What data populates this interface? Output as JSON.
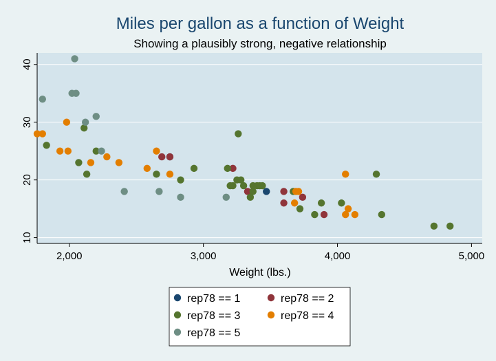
{
  "chart_data": {
    "type": "scatter",
    "title": "Miles per gallon as a function of Weight",
    "subtitle": "Showing a plausibly strong, negative relationship",
    "xlabel": "Weight (lbs.)",
    "ylabel": "",
    "xlim": [
      1760,
      5080
    ],
    "ylim": [
      9,
      42
    ],
    "xticks": [
      2000,
      3000,
      4000,
      5000
    ],
    "xtick_labels": [
      "2,000",
      "3,000",
      "4,000",
      "5,000"
    ],
    "yticks": [
      10,
      20,
      30,
      40
    ],
    "ytick_labels": [
      "10",
      "20",
      "30",
      "40"
    ],
    "grid": "horizontal",
    "legend_position": "bottom",
    "series": [
      {
        "name": "rep78 == 1",
        "color": "#1a476f",
        "points": [
          [
            2750,
            24
          ],
          [
            3470,
            18
          ]
        ]
      },
      {
        "name": "rep78 == 2",
        "color": "#90353b",
        "points": [
          [
            2690,
            24
          ],
          [
            2750,
            24
          ],
          [
            3220,
            22
          ],
          [
            3330,
            18
          ],
          [
            3600,
            18
          ],
          [
            3600,
            16
          ],
          [
            3740,
            17
          ],
          [
            3900,
            14
          ]
        ]
      },
      {
        "name": "rep78 == 3",
        "color": "#55752f",
        "points": [
          [
            1830,
            26
          ],
          [
            2070,
            23
          ],
          [
            2110,
            29
          ],
          [
            2130,
            21
          ],
          [
            2200,
            25
          ],
          [
            2650,
            21
          ],
          [
            2830,
            20
          ],
          [
            2930,
            22
          ],
          [
            3180,
            22
          ],
          [
            3200,
            19
          ],
          [
            3220,
            19
          ],
          [
            3250,
            20
          ],
          [
            3260,
            28
          ],
          [
            3280,
            20
          ],
          [
            3300,
            19
          ],
          [
            3350,
            17
          ],
          [
            3370,
            19
          ],
          [
            3370,
            18
          ],
          [
            3400,
            19
          ],
          [
            3420,
            19
          ],
          [
            3440,
            19
          ],
          [
            3670,
            18
          ],
          [
            3720,
            15
          ],
          [
            3830,
            14
          ],
          [
            3880,
            16
          ],
          [
            4030,
            16
          ],
          [
            4290,
            21
          ],
          [
            4330,
            14
          ],
          [
            4720,
            12
          ],
          [
            4840,
            12
          ]
        ]
      },
      {
        "name": "rep78 == 4",
        "color": "#e37e00",
        "points": [
          [
            1760,
            28
          ],
          [
            1800,
            28
          ],
          [
            1930,
            25
          ],
          [
            1980,
            30
          ],
          [
            1990,
            25
          ],
          [
            2160,
            23
          ],
          [
            2280,
            24
          ],
          [
            2370,
            23
          ],
          [
            2580,
            22
          ],
          [
            2650,
            25
          ],
          [
            2750,
            21
          ],
          [
            3680,
            16
          ],
          [
            3690,
            18
          ],
          [
            3710,
            18
          ],
          [
            4060,
            21
          ],
          [
            4060,
            14
          ],
          [
            4080,
            15
          ],
          [
            4130,
            14
          ]
        ]
      },
      {
        "name": "rep78 == 5",
        "color": "#6e8e84",
        "points": [
          [
            1800,
            34
          ],
          [
            2020,
            35
          ],
          [
            2040,
            41
          ],
          [
            2050,
            35
          ],
          [
            2120,
            30
          ],
          [
            2200,
            31
          ],
          [
            2240,
            25
          ],
          [
            2410,
            18
          ],
          [
            2670,
            18
          ],
          [
            2830,
            17
          ],
          [
            3170,
            17
          ]
        ]
      }
    ]
  }
}
